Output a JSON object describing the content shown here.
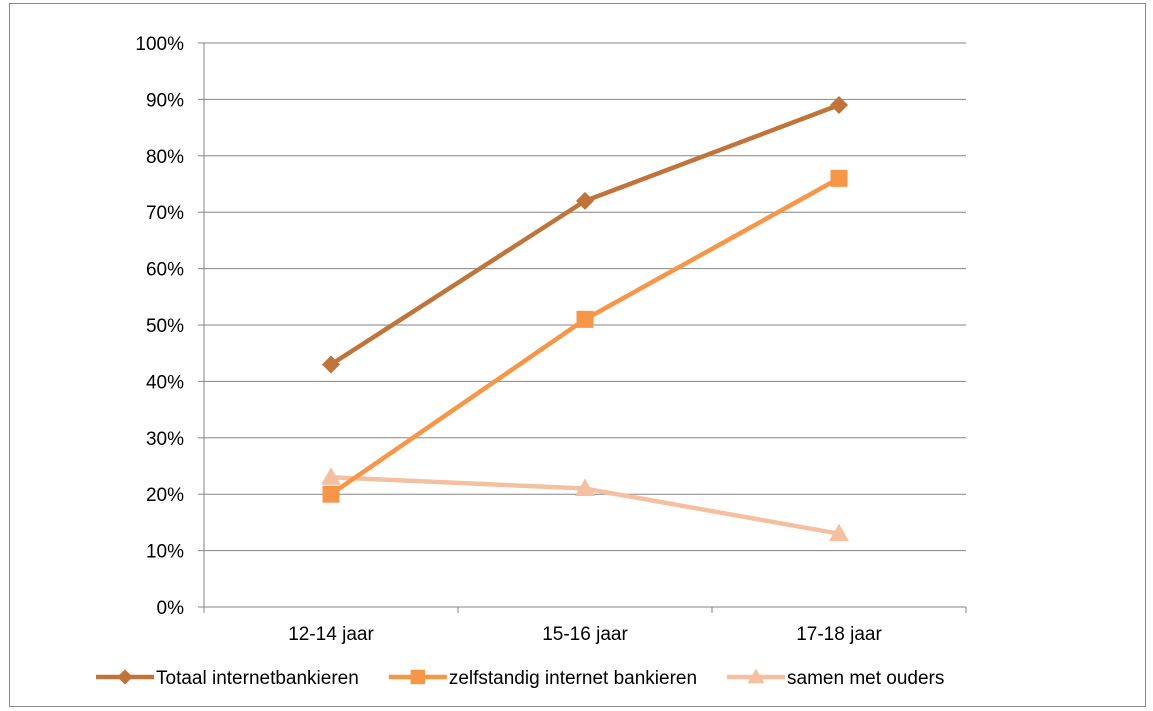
{
  "chart_data": {
    "type": "line",
    "title": "",
    "xlabel": "",
    "ylabel": "",
    "categories": [
      "12-14 jaar",
      "15-16 jaar",
      "17-18 jaar"
    ],
    "ylim": [
      0,
      100
    ],
    "yticks": [
      "0%",
      "10%",
      "20%",
      "30%",
      "40%",
      "50%",
      "60%",
      "70%",
      "80%",
      "90%",
      "100%"
    ],
    "y_unit": "percent",
    "grid": true,
    "legend_position": "bottom",
    "series": [
      {
        "name": "Totaal internetbankieren",
        "values": [
          43,
          72,
          89
        ],
        "color": "#c0743a",
        "marker": "diamond"
      },
      {
        "name": "zelfstandig internet bankieren",
        "values": [
          20,
          51,
          76
        ],
        "color": "#f79646",
        "marker": "square"
      },
      {
        "name": "samen met ouders",
        "values": [
          23,
          21,
          13
        ],
        "color": "#f5c0a0",
        "marker": "triangle"
      }
    ]
  }
}
